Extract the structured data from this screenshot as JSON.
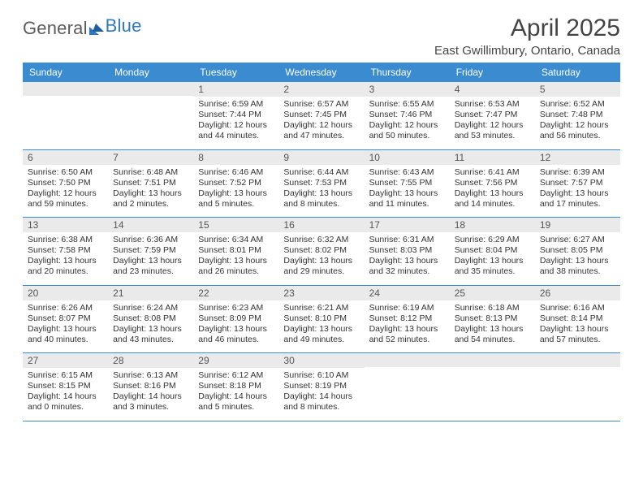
{
  "colors": {
    "header_bar": "#3a8bd0",
    "header_text": "#ffffff",
    "daynum_bg": "#eaeaea",
    "body_text": "#333333",
    "logo_gray": "#5b5b5b",
    "logo_blue": "#2f78c2",
    "week_divider": "#3a8bd0"
  },
  "logo": {
    "part1": "General",
    "part2": "Blue"
  },
  "title": {
    "month": "April 2025",
    "location": "East Gwillimbury, Ontario, Canada"
  },
  "weekdays": [
    "Sunday",
    "Monday",
    "Tuesday",
    "Wednesday",
    "Thursday",
    "Friday",
    "Saturday"
  ],
  "weeks": [
    [
      null,
      null,
      {
        "n": "1",
        "sr": "Sunrise: 6:59 AM",
        "ss": "Sunset: 7:44 PM",
        "d1": "Daylight: 12 hours",
        "d2": "and 44 minutes."
      },
      {
        "n": "2",
        "sr": "Sunrise: 6:57 AM",
        "ss": "Sunset: 7:45 PM",
        "d1": "Daylight: 12 hours",
        "d2": "and 47 minutes."
      },
      {
        "n": "3",
        "sr": "Sunrise: 6:55 AM",
        "ss": "Sunset: 7:46 PM",
        "d1": "Daylight: 12 hours",
        "d2": "and 50 minutes."
      },
      {
        "n": "4",
        "sr": "Sunrise: 6:53 AM",
        "ss": "Sunset: 7:47 PM",
        "d1": "Daylight: 12 hours",
        "d2": "and 53 minutes."
      },
      {
        "n": "5",
        "sr": "Sunrise: 6:52 AM",
        "ss": "Sunset: 7:48 PM",
        "d1": "Daylight: 12 hours",
        "d2": "and 56 minutes."
      }
    ],
    [
      {
        "n": "6",
        "sr": "Sunrise: 6:50 AM",
        "ss": "Sunset: 7:50 PM",
        "d1": "Daylight: 12 hours",
        "d2": "and 59 minutes."
      },
      {
        "n": "7",
        "sr": "Sunrise: 6:48 AM",
        "ss": "Sunset: 7:51 PM",
        "d1": "Daylight: 13 hours",
        "d2": "and 2 minutes."
      },
      {
        "n": "8",
        "sr": "Sunrise: 6:46 AM",
        "ss": "Sunset: 7:52 PM",
        "d1": "Daylight: 13 hours",
        "d2": "and 5 minutes."
      },
      {
        "n": "9",
        "sr": "Sunrise: 6:44 AM",
        "ss": "Sunset: 7:53 PM",
        "d1": "Daylight: 13 hours",
        "d2": "and 8 minutes."
      },
      {
        "n": "10",
        "sr": "Sunrise: 6:43 AM",
        "ss": "Sunset: 7:55 PM",
        "d1": "Daylight: 13 hours",
        "d2": "and 11 minutes."
      },
      {
        "n": "11",
        "sr": "Sunrise: 6:41 AM",
        "ss": "Sunset: 7:56 PM",
        "d1": "Daylight: 13 hours",
        "d2": "and 14 minutes."
      },
      {
        "n": "12",
        "sr": "Sunrise: 6:39 AM",
        "ss": "Sunset: 7:57 PM",
        "d1": "Daylight: 13 hours",
        "d2": "and 17 minutes."
      }
    ],
    [
      {
        "n": "13",
        "sr": "Sunrise: 6:38 AM",
        "ss": "Sunset: 7:58 PM",
        "d1": "Daylight: 13 hours",
        "d2": "and 20 minutes."
      },
      {
        "n": "14",
        "sr": "Sunrise: 6:36 AM",
        "ss": "Sunset: 7:59 PM",
        "d1": "Daylight: 13 hours",
        "d2": "and 23 minutes."
      },
      {
        "n": "15",
        "sr": "Sunrise: 6:34 AM",
        "ss": "Sunset: 8:01 PM",
        "d1": "Daylight: 13 hours",
        "d2": "and 26 minutes."
      },
      {
        "n": "16",
        "sr": "Sunrise: 6:32 AM",
        "ss": "Sunset: 8:02 PM",
        "d1": "Daylight: 13 hours",
        "d2": "and 29 minutes."
      },
      {
        "n": "17",
        "sr": "Sunrise: 6:31 AM",
        "ss": "Sunset: 8:03 PM",
        "d1": "Daylight: 13 hours",
        "d2": "and 32 minutes."
      },
      {
        "n": "18",
        "sr": "Sunrise: 6:29 AM",
        "ss": "Sunset: 8:04 PM",
        "d1": "Daylight: 13 hours",
        "d2": "and 35 minutes."
      },
      {
        "n": "19",
        "sr": "Sunrise: 6:27 AM",
        "ss": "Sunset: 8:05 PM",
        "d1": "Daylight: 13 hours",
        "d2": "and 38 minutes."
      }
    ],
    [
      {
        "n": "20",
        "sr": "Sunrise: 6:26 AM",
        "ss": "Sunset: 8:07 PM",
        "d1": "Daylight: 13 hours",
        "d2": "and 40 minutes."
      },
      {
        "n": "21",
        "sr": "Sunrise: 6:24 AM",
        "ss": "Sunset: 8:08 PM",
        "d1": "Daylight: 13 hours",
        "d2": "and 43 minutes."
      },
      {
        "n": "22",
        "sr": "Sunrise: 6:23 AM",
        "ss": "Sunset: 8:09 PM",
        "d1": "Daylight: 13 hours",
        "d2": "and 46 minutes."
      },
      {
        "n": "23",
        "sr": "Sunrise: 6:21 AM",
        "ss": "Sunset: 8:10 PM",
        "d1": "Daylight: 13 hours",
        "d2": "and 49 minutes."
      },
      {
        "n": "24",
        "sr": "Sunrise: 6:19 AM",
        "ss": "Sunset: 8:12 PM",
        "d1": "Daylight: 13 hours",
        "d2": "and 52 minutes."
      },
      {
        "n": "25",
        "sr": "Sunrise: 6:18 AM",
        "ss": "Sunset: 8:13 PM",
        "d1": "Daylight: 13 hours",
        "d2": "and 54 minutes."
      },
      {
        "n": "26",
        "sr": "Sunrise: 6:16 AM",
        "ss": "Sunset: 8:14 PM",
        "d1": "Daylight: 13 hours",
        "d2": "and 57 minutes."
      }
    ],
    [
      {
        "n": "27",
        "sr": "Sunrise: 6:15 AM",
        "ss": "Sunset: 8:15 PM",
        "d1": "Daylight: 14 hours",
        "d2": "and 0 minutes."
      },
      {
        "n": "28",
        "sr": "Sunrise: 6:13 AM",
        "ss": "Sunset: 8:16 PM",
        "d1": "Daylight: 14 hours",
        "d2": "and 3 minutes."
      },
      {
        "n": "29",
        "sr": "Sunrise: 6:12 AM",
        "ss": "Sunset: 8:18 PM",
        "d1": "Daylight: 14 hours",
        "d2": "and 5 minutes."
      },
      {
        "n": "30",
        "sr": "Sunrise: 6:10 AM",
        "ss": "Sunset: 8:19 PM",
        "d1": "Daylight: 14 hours",
        "d2": "and 8 minutes."
      },
      null,
      null,
      null
    ]
  ]
}
